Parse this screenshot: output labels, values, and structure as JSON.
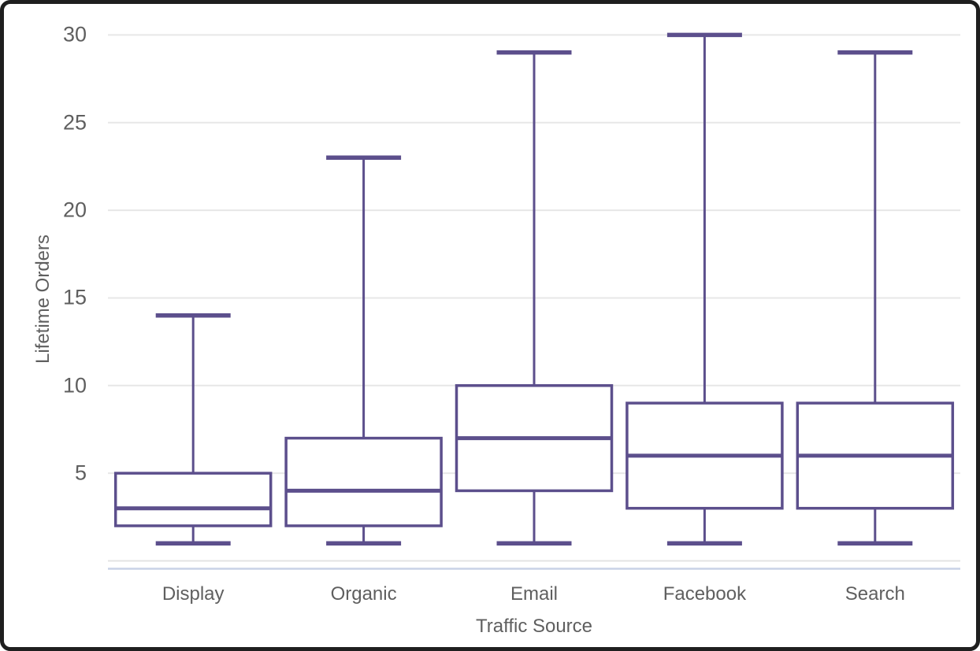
{
  "chart_data": {
    "type": "boxplot",
    "title": "",
    "xlabel": "Traffic Source",
    "ylabel": "Lifetime Orders",
    "categories": [
      "Display",
      "Organic",
      "Email",
      "Facebook",
      "Search"
    ],
    "series": [
      {
        "name": "Display",
        "min": 1,
        "q1": 2,
        "median": 3,
        "q3": 5,
        "max": 14
      },
      {
        "name": "Organic",
        "min": 1,
        "q1": 2,
        "median": 4,
        "q3": 7,
        "max": 23
      },
      {
        "name": "Email",
        "min": 1,
        "q1": 4,
        "median": 7,
        "q3": 10,
        "max": 29
      },
      {
        "name": "Facebook",
        "min": 1,
        "q1": 3,
        "median": 6,
        "q3": 9,
        "max": 30
      },
      {
        "name": "Search",
        "min": 1,
        "q1": 3,
        "median": 6,
        "q3": 9,
        "max": 29
      }
    ],
    "y_ticks": [
      5,
      10,
      15,
      20,
      25,
      30
    ],
    "ylim": [
      0,
      30
    ],
    "grid": "horizontal",
    "legend": "none",
    "outliers": "none",
    "colors": {
      "box_stroke": "#5c4f8c",
      "box_fill": "#ffffff",
      "gridline": "#e7e7e7",
      "axis_baseline": "#e3e3e3",
      "axis_accent_line": "#c9d2e6",
      "text": "#5f5f5f",
      "frame_border": "#1f1f1f",
      "background": "#ffffff"
    }
  }
}
